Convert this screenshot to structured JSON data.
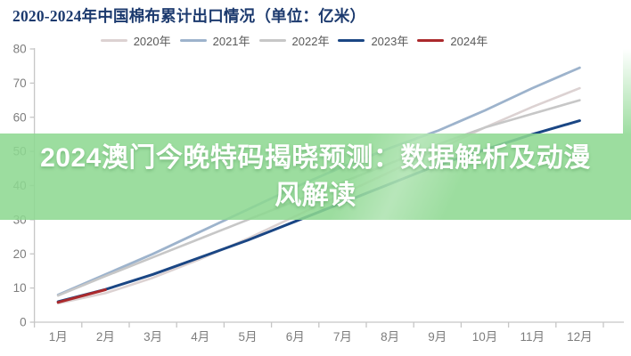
{
  "title": "2020-2024年中国棉布累计出口情况（单位：亿米）",
  "banner": {
    "line1": "2024澳门今晚特码揭晓预测：数据解析及动漫",
    "line2": "风解读",
    "bg_color": "#8dd891",
    "text_color": "#ffffff"
  },
  "colors": {
    "title": "#1c3a6e",
    "axis_line": "#c6c6c6",
    "tick_label": "#7d7d7d",
    "legend_label": "#595959"
  },
  "chart_data": {
    "type": "line",
    "title": "2020-2024年中国棉布累计出口情况（单位：亿米）",
    "unit": "亿米",
    "xlabel": "",
    "ylabel": "",
    "ylim": [
      0,
      80
    ],
    "y_ticks": [
      0,
      10,
      20,
      30,
      40,
      50,
      60,
      70,
      80
    ],
    "grid": false,
    "legend_position": "top",
    "categories": [
      "1月",
      "2月",
      "3月",
      "4月",
      "5月",
      "6月",
      "7月",
      "8月",
      "9月",
      "10月",
      "11月",
      "12月"
    ],
    "series": [
      {
        "name": "2020年",
        "color": "#dcd2d2",
        "width": 2.6,
        "values": [
          5.5,
          8.5,
          13,
          18.5,
          24.5,
          31,
          37.5,
          44,
          50.5,
          57,
          63,
          68.5
        ]
      },
      {
        "name": "2021年",
        "color": "#9db3cc",
        "width": 2.8,
        "values": [
          8,
          14,
          20,
          26.5,
          33,
          39.5,
          45.5,
          51,
          56,
          62,
          68.5,
          74.5
        ]
      },
      {
        "name": "2022年",
        "color": "#c7c7c7",
        "width": 2.6,
        "values": [
          7.8,
          13.5,
          19,
          24.5,
          30,
          35.5,
          41,
          46.5,
          52,
          57,
          61,
          65
        ]
      },
      {
        "name": "2023年",
        "color": "#1a4684",
        "width": 3,
        "values": [
          6,
          9.6,
          14,
          19,
          24,
          29.5,
          35,
          40.5,
          46,
          50.5,
          55,
          59
        ]
      },
      {
        "name": "2024年",
        "color": "#ab292c",
        "width": 3,
        "values": [
          5.8,
          9.5
        ]
      }
    ]
  }
}
